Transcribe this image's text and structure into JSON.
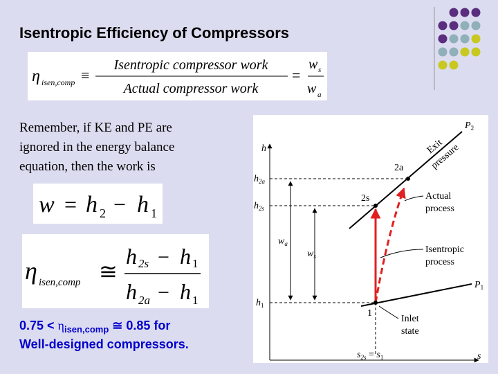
{
  "header": {
    "title": "Isentropic Efficiency of Compressors"
  },
  "definition": {
    "symbol": "η",
    "subscript": "isen,comp",
    "relation": "≡",
    "numerator": "Isentropic compressor work",
    "denominator": "Actual compressor work",
    "equals": "=",
    "ratio_numerator": "w",
    "ratio_numerator_sub": "s",
    "ratio_denominator": "w",
    "ratio_denominator_sub": "a"
  },
  "note": {
    "lines": [
      "Remember, if KE and PE are",
      "ignored in the energy balance",
      "equation, then the work is"
    ]
  },
  "work_equation": {
    "lhs": "w",
    "equals": "=",
    "term1": "h",
    "term1_sub": "2",
    "minus": "−",
    "term2": "h",
    "term2_sub": "1"
  },
  "efficiency_equation": {
    "symbol": "η",
    "subscript": "isen,comp",
    "relation": "≅",
    "numerator": "h",
    "numerator_sub": "2s",
    "numerator_minus": "−",
    "numerator_term": "h",
    "numerator_term_sub": "1",
    "denominator": "h",
    "denominator_sub": "2a",
    "denominator_minus": "−",
    "denominator_term": "h",
    "denominator_term_sub": "1"
  },
  "conclusion": {
    "lead": "0.75 < ",
    "symbol": "η",
    "subscript": "isen,comp",
    "relation": " ≅ 0.85 for",
    "line2": "Well-designed compressors."
  },
  "diagram": {
    "y_axis": "h",
    "x_axis": "s",
    "h2a": "h",
    "h2a_sub": "2a",
    "h2s": "h",
    "h2s_sub": "2s",
    "h1": "h",
    "h1_sub": "1",
    "wa": "w",
    "wa_sub": "a",
    "ws": "w",
    "ws_sub": "s",
    "state_2a": "2a",
    "state_2s": "2s",
    "state_1": "1",
    "p2": "P",
    "p2_sub": "2",
    "p1": "P",
    "p1_sub": "1",
    "exit_pressure": [
      "Exit",
      "pressure"
    ],
    "actual_process": [
      "Actual",
      "process"
    ],
    "isentropic_process": [
      "Isentropic",
      "process"
    ],
    "inlet_state": [
      "Inlet",
      "state"
    ],
    "s_label": "s",
    "s_label_sub": "2s",
    "s_equals": " = ",
    "s1": "s",
    "s1_sub": "1"
  }
}
